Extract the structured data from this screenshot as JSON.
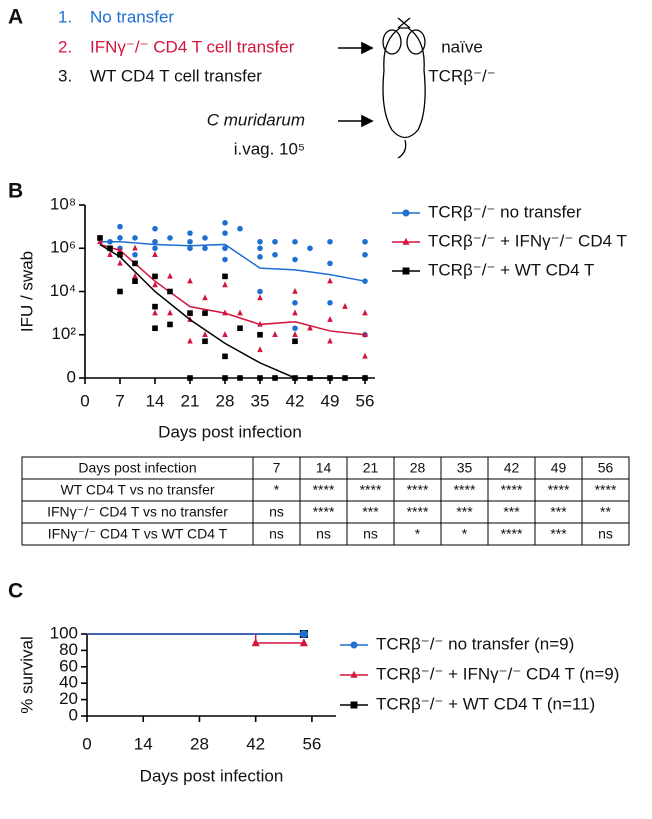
{
  "panel_a": {
    "label": "A",
    "items": [
      {
        "number": "1.",
        "text": "No transfer"
      },
      {
        "number": "2.",
        "text": "IFNγ⁻/⁻ CD4 T cell transfer"
      },
      {
        "number": "3.",
        "text": "WT CD4 T cell transfer"
      }
    ],
    "infection": [
      "C muridarum",
      "i.vag. 10⁵"
    ],
    "mouse": [
      "naïve",
      "TCRβ⁻/⁻"
    ]
  },
  "chart_data": [
    {
      "panel": "B",
      "type": "line",
      "log": true,
      "ylabel": "IFU / swab",
      "xlabel": "Days post infection",
      "xlim": [
        0,
        58
      ],
      "xticks": [
        0,
        7,
        14,
        21,
        28,
        35,
        42,
        49,
        56
      ],
      "ylim": [
        0,
        100000000
      ],
      "yticks": [
        0,
        {
          "value": 100,
          "label": "10²"
        },
        {
          "value": 10000,
          "label": "10⁴"
        },
        {
          "value": 1000000,
          "label": "10⁶"
        },
        {
          "value": 100000000,
          "label": "10⁸"
        }
      ],
      "series": [
        {
          "name": "TCRβ⁻/⁻ no transfer",
          "color": "#1f6fd1",
          "marker": "circle",
          "x": [
            3,
            7,
            14,
            21,
            28,
            35,
            42,
            49,
            56
          ],
          "values": [
            2000000,
            2000000,
            1500000,
            1300000,
            1500000,
            120000,
            100000,
            60000,
            30000
          ],
          "points_x": [
            5,
            7,
            7,
            7,
            10,
            10,
            14,
            14,
            14,
            17,
            21,
            21,
            21,
            24,
            24,
            28,
            28,
            28,
            28,
            31,
            35,
            35,
            35,
            35,
            38,
            38,
            42,
            42,
            42,
            42,
            45,
            49,
            49,
            49,
            56,
            56,
            56,
            56,
            56
          ],
          "points_y": [
            2000000,
            10000000,
            3000000,
            1000000,
            3000000,
            500000,
            2000000,
            8000000,
            1000000,
            3000000,
            2000000,
            5000000,
            1000000,
            3000000,
            1000000,
            15000000,
            5000000,
            1000000,
            300000,
            8000000,
            2000000,
            1000000,
            400000,
            10000,
            2000000,
            500000,
            2000000,
            300000,
            3000,
            200,
            1000000,
            2000000,
            200000,
            3000,
            2000000,
            500000,
            30000,
            100,
            0
          ]
        },
        {
          "name": "TCRβ⁻/⁻ + IFNγ⁻/⁻ CD4 T",
          "color": "#d4143c",
          "marker": "triangle",
          "x": [
            3,
            7,
            14,
            21,
            28,
            35,
            42,
            49,
            56
          ],
          "values": [
            1500000,
            800000,
            30000,
            2000,
            1000,
            300,
            400,
            150,
            100
          ],
          "points_x": [
            3,
            5,
            7,
            7,
            10,
            10,
            14,
            14,
            14,
            17,
            17,
            21,
            21,
            21,
            24,
            24,
            28,
            28,
            28,
            31,
            35,
            35,
            35,
            38,
            42,
            42,
            42,
            45,
            49,
            49,
            49,
            52,
            56,
            56,
            56,
            56
          ],
          "points_y": [
            2000000,
            500000,
            800000,
            200000,
            1000000,
            50000,
            500000,
            20000,
            1000,
            50000,
            1000,
            30000,
            500,
            50,
            5000,
            100,
            20000,
            1000,
            100,
            1000,
            5000,
            300,
            20,
            100,
            10000,
            1000,
            100,
            200,
            30000,
            500,
            50,
            2000,
            1000,
            100,
            10,
            0
          ]
        },
        {
          "name": "TCRβ⁻/⁻ + WT CD4 T",
          "color": "#000000",
          "marker": "square",
          "x": [
            3,
            7,
            14,
            21,
            28,
            35,
            42,
            49,
            56
          ],
          "values": [
            1500000,
            400000,
            10000,
            500,
            40,
            5,
            1,
            1,
            1
          ],
          "points_x": [
            3,
            5,
            7,
            7,
            10,
            10,
            14,
            14,
            14,
            17,
            17,
            21,
            21,
            24,
            24,
            28,
            28,
            28,
            31,
            31,
            35,
            35,
            38,
            42,
            42,
            45,
            49,
            52,
            56
          ],
          "points_y": [
            3000000,
            1000000,
            500000,
            10000,
            200000,
            30000,
            50000,
            2000,
            200,
            10000,
            300,
            1000,
            0,
            1000,
            50,
            50000,
            10,
            0,
            200,
            0,
            100,
            0,
            0,
            50,
            0,
            0,
            0,
            0,
            0
          ]
        }
      ]
    },
    {
      "panel": "C",
      "type": "step",
      "ylabel": "% survival",
      "xlabel": "Days post infection",
      "xlim": [
        0,
        62
      ],
      "xticks": [
        0,
        14,
        28,
        42,
        56
      ],
      "ylim": [
        0,
        100
      ],
      "yticks": [
        0,
        20,
        40,
        60,
        80,
        100
      ],
      "series": [
        {
          "name": "TCRβ⁻/⁻ no transfer (n=9)",
          "color": "#1f6fd1",
          "marker": "circle",
          "x": [
            0,
            54
          ],
          "values": [
            100,
            100
          ]
        },
        {
          "name": "TCRβ⁻/⁻ + IFNγ⁻/⁻ CD4 T (n=9)",
          "color": "#d4143c",
          "marker": "triangle",
          "x": [
            0,
            42,
            54
          ],
          "values": [
            100,
            89,
            89
          ]
        },
        {
          "name": "TCRβ⁻/⁻ + WT CD4 T (n=11)",
          "color": "#000000",
          "marker": "square",
          "x": [
            0,
            54
          ],
          "values": [
            100,
            100
          ]
        }
      ]
    }
  ],
  "table": {
    "header": [
      "Days post infection",
      "7",
      "14",
      "21",
      "28",
      "35",
      "42",
      "49",
      "56"
    ],
    "rows": [
      [
        "WT CD4 T vs no transfer",
        "*",
        "****",
        "****",
        "****",
        "****",
        "****",
        "****",
        "****"
      ],
      [
        "IFNγ⁻/⁻ CD4 T vs no transfer",
        "ns",
        "****",
        "***",
        "****",
        "***",
        "***",
        "***",
        "**"
      ],
      [
        "IFNγ⁻/⁻ CD4 T vs WT CD4 T",
        "ns",
        "ns",
        "ns",
        "*",
        "*",
        "****",
        "***",
        "ns"
      ]
    ]
  }
}
